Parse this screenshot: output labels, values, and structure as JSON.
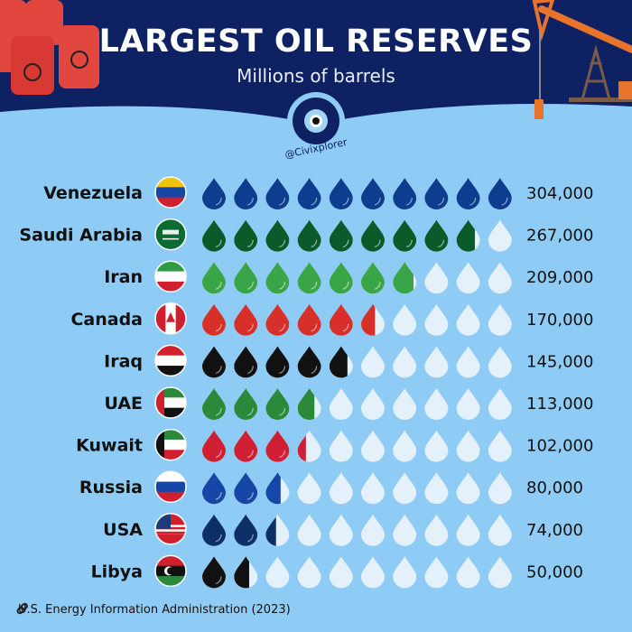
{
  "header": {
    "title": "LARGEST OIL RESERVES",
    "subtitle": "Millions of barrels",
    "handle": "@Civixplorer"
  },
  "source": "U.S. Energy Information Administration (2023)",
  "colors": {
    "header_bg": "#0e2162",
    "background": "#8ecbf5",
    "empty_drop": "#e4f1fb"
  },
  "chart_data": {
    "type": "pictogram",
    "title": "LARGEST OIL RESERVES",
    "subtitle": "Millions of barrels",
    "icon": "oil-drop-icon",
    "drops_per_row": 10,
    "categories": [
      "Venezuela",
      "Saudi Arabia",
      "Iran",
      "Canada",
      "Iraq",
      "UAE",
      "Kuwait",
      "Russia",
      "USA",
      "Libya"
    ],
    "values": [
      304000,
      267000,
      209000,
      170000,
      145000,
      113000,
      102000,
      80000,
      74000,
      50000
    ],
    "labels": [
      "304,000",
      "267,000",
      "209,000",
      "170,000",
      "145,000",
      "113,000",
      "102,000",
      "80,000",
      "74,000",
      "50,000"
    ],
    "drop_colors": [
      "#0d3d8f",
      "#0b5a2a",
      "#3aa547",
      "#d7302a",
      "#111111",
      "#2a8a3a",
      "#d01f33",
      "#1747a6",
      "#0b2f66",
      "#111111"
    ]
  }
}
